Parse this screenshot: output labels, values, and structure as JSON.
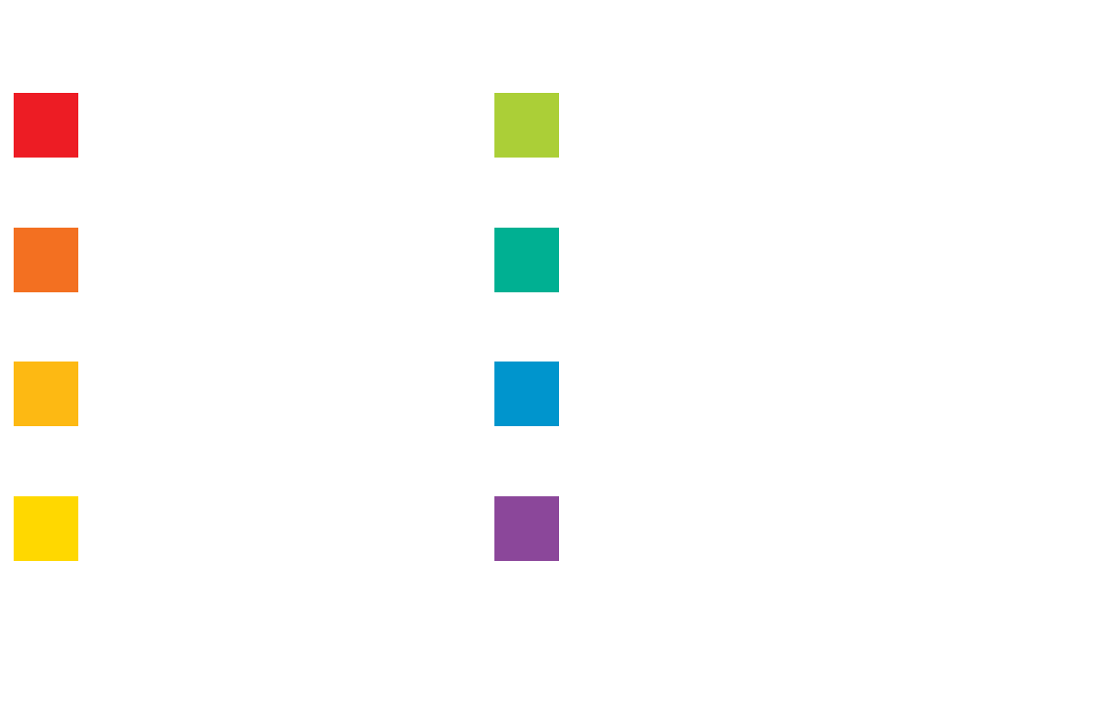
{
  "swatches": [
    {
      "color": "#ed1c24"
    },
    {
      "color": "#f37021"
    },
    {
      "color": "#fdb913"
    },
    {
      "color": "#ffd800"
    },
    {
      "color": "#abcf37"
    },
    {
      "color": "#00b092"
    },
    {
      "color": "#0095cd"
    },
    {
      "color": "#8b479a"
    }
  ]
}
